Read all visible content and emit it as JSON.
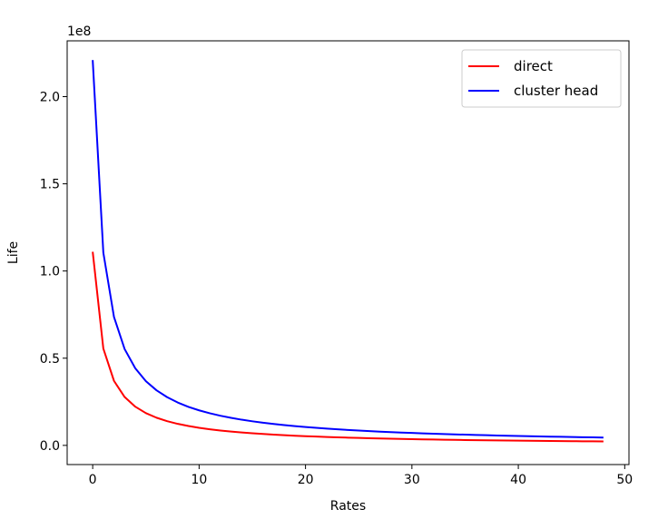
{
  "chart_data": {
    "type": "line",
    "title": "",
    "xlabel": "Rates",
    "ylabel": "Life",
    "offset_text": "1e8",
    "xlim": [
      -2.4,
      50.4
    ],
    "ylim": [
      -0.11,
      2.32
    ],
    "y_scale": 100000000,
    "x_ticks": [
      0,
      10,
      20,
      30,
      40,
      50
    ],
    "x_tick_labels": [
      "0",
      "10",
      "20",
      "30",
      "40",
      "50"
    ],
    "y_ticks": [
      0.0,
      0.5,
      1.0,
      1.5,
      2.0
    ],
    "y_tick_labels": [
      "0.0",
      "0.5",
      "1.0",
      "1.5",
      "2.0"
    ],
    "grid": false,
    "legend_position": "upper-right",
    "x": [
      0,
      1,
      2,
      3,
      4,
      5,
      6,
      7,
      8,
      9,
      10,
      11,
      12,
      13,
      14,
      15,
      16,
      17,
      18,
      19,
      20,
      21,
      22,
      23,
      24,
      25,
      26,
      27,
      28,
      29,
      30,
      31,
      32,
      33,
      34,
      35,
      36,
      37,
      38,
      39,
      40,
      41,
      42,
      43,
      44,
      45,
      46,
      47,
      48
    ],
    "series": [
      {
        "name": "direct",
        "color": "#ff0000",
        "values": [
          1.11,
          0.555,
          0.37,
          0.2775,
          0.222,
          0.185,
          0.1586,
          0.1388,
          0.1233,
          0.111,
          0.1009,
          0.0925,
          0.0854,
          0.0793,
          0.074,
          0.0694,
          0.0653,
          0.0617,
          0.0584,
          0.0555,
          0.0529,
          0.0505,
          0.0483,
          0.0463,
          0.0444,
          0.0427,
          0.0411,
          0.0396,
          0.0383,
          0.037,
          0.0358,
          0.0347,
          0.0336,
          0.0326,
          0.0317,
          0.0308,
          0.03,
          0.0292,
          0.0285,
          0.0278,
          0.0271,
          0.0264,
          0.0258,
          0.0252,
          0.0247,
          0.0241,
          0.0236,
          0.0231,
          0.0227
        ]
      },
      {
        "name": "cluster head",
        "color": "#0000ff",
        "values": [
          2.21,
          1.105,
          0.7367,
          0.5525,
          0.442,
          0.3683,
          0.3157,
          0.2763,
          0.2456,
          0.221,
          0.2009,
          0.1842,
          0.17,
          0.1579,
          0.1473,
          0.1381,
          0.13,
          0.1228,
          0.1163,
          0.1105,
          0.1052,
          0.1005,
          0.0961,
          0.0921,
          0.0884,
          0.085,
          0.0819,
          0.0789,
          0.0762,
          0.0737,
          0.0713,
          0.0691,
          0.067,
          0.065,
          0.0631,
          0.0614,
          0.0597,
          0.0582,
          0.0567,
          0.0553,
          0.0539,
          0.0526,
          0.0514,
          0.0502,
          0.0491,
          0.0481,
          0.047,
          0.046,
          0.0451
        ]
      }
    ]
  }
}
